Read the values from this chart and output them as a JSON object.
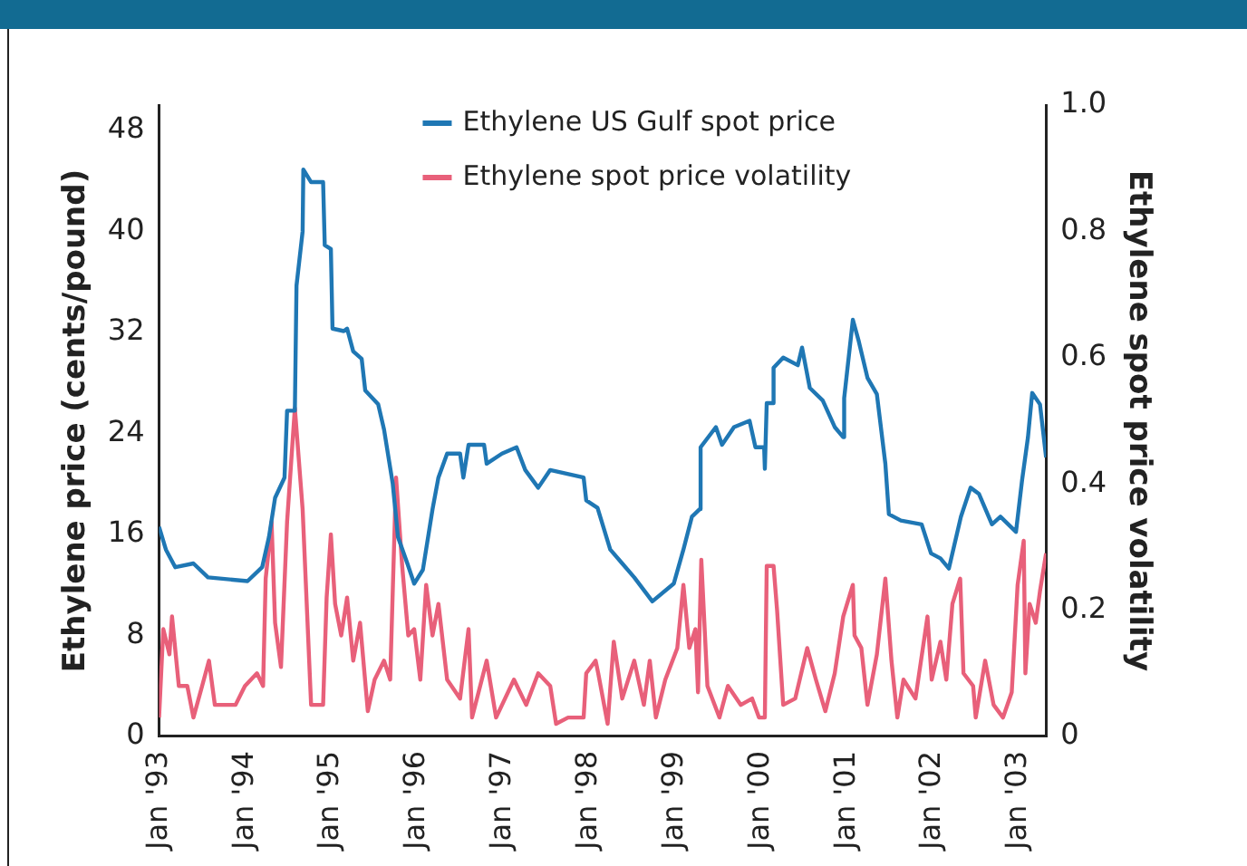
{
  "chart_data": {
    "type": "line",
    "ylabel": "Ethylene price (cents/pound)",
    "y2label": "Ethylene spot price volatility",
    "xlim": [
      "1993-01-01",
      "2003-04-28"
    ],
    "xticks": [
      {
        "value": "1993-01",
        "label": "Jan '93"
      },
      {
        "value": "1994-01",
        "label": "Jan '94"
      },
      {
        "value": "1995-01",
        "label": "Jan '95"
      },
      {
        "value": "1996-01",
        "label": "Jan '96"
      },
      {
        "value": "1997-01",
        "label": "Jan '97"
      },
      {
        "value": "1998-01",
        "label": "Jan '98"
      },
      {
        "value": "1999-01",
        "label": "Jan '99"
      },
      {
        "value": "2000-01",
        "label": "Jan '00"
      },
      {
        "value": "2001-01",
        "label": "Jan '01"
      },
      {
        "value": "2002-01",
        "label": "Jan '02"
      },
      {
        "value": "2003-01",
        "label": "Jan '03"
      }
    ],
    "ylim": [
      0,
      50
    ],
    "yticks": [
      0,
      8,
      16,
      24,
      32,
      40,
      48
    ],
    "y2lim": [
      0,
      1
    ],
    "y2ticks": [
      0,
      0.2,
      0.4,
      0.6,
      0.8,
      {
        "value": 1,
        "label": "1.0"
      }
    ],
    "grid": false,
    "legend": "top",
    "marker": "none",
    "line_style": "solid",
    "series": [
      {
        "name": "Ethylene US Gulf spot price",
        "color": "#1f77b4",
        "x": [
          "1993-01-01",
          "1993-01-30",
          "1993-03-11",
          "1993-05-27",
          "1993-07-28",
          "1994-01-12",
          "1994-03-15",
          "1994-04-13",
          "1994-05-09",
          "1994-06-18",
          "1994-06-29",
          "1994-08-01",
          "1994-08-08",
          "1994-09-03",
          "1994-09-06",
          "1994-10-09",
          "1994-11-29",
          "1994-12-06",
          "1995-01-01",
          "1995-01-08",
          "1995-02-25",
          "1995-03-11",
          "1995-04-06",
          "1995-05-12",
          "1995-05-27",
          "1995-07-21",
          "1995-08-15",
          "1995-09-21",
          "1995-10-13",
          "1995-11-22",
          "1995-12-21",
          "1996-01-27",
          "1996-03-08",
          "1996-04-02",
          "1996-05-09",
          "1996-07-03",
          "1996-07-17",
          "1996-08-08",
          "1996-10-13",
          "1996-10-24",
          "1996-12-28",
          "1997-02-28",
          "1997-04-06",
          "1997-05-31",
          "1997-07-21",
          "1997-12-10",
          "1997-12-21",
          "1998-02-07",
          "1998-04-02",
          "1998-05-23",
          "1998-07-13",
          "1998-09-28",
          "1998-12-28",
          "1999-02-07",
          "1999-03-15",
          "1999-04-17",
          "1999-04-21",
          "1999-06-25",
          "1999-07-21",
          "1999-09-10",
          "1999-11-15",
          "1999-12-10",
          "2000-01-16",
          "2000-01-19",
          "2000-01-27",
          "2000-02-21",
          "2000-02-25",
          "2000-04-06",
          "2000-06-07",
          "2000-06-25",
          "2000-07-28",
          "2000-09-21",
          "2000-11-11",
          "2000-12-17",
          "2000-12-21",
          "2001-01-27",
          "2001-02-21",
          "2001-03-30",
          "2001-05-09",
          "2001-06-14",
          "2001-06-29",
          "2001-08-19",
          "2001-11-15",
          "2001-12-25",
          "2002-02-03",
          "2002-03-11",
          "2002-05-01",
          "2002-06-11",
          "2002-07-17",
          "2002-09-10",
          "2002-10-16",
          "2002-12-21",
          "2003-01-16",
          "2003-02-10",
          "2003-02-28",
          "2003-04-02",
          "2003-04-28"
        ],
        "values": [
          16.6,
          14.8,
          13.4,
          13.7,
          12.6,
          12.3,
          13.4,
          15.8,
          18.9,
          20.5,
          25.8,
          25.8,
          35.7,
          40,
          44.9,
          43.9,
          43.9,
          38.9,
          38.6,
          32.3,
          32.1,
          32.3,
          30.5,
          29.9,
          27.4,
          26.3,
          24.3,
          20.0,
          15.8,
          13.7,
          12.1,
          13.2,
          18.0,
          20.5,
          22.4,
          22.4,
          20.5,
          23.1,
          23.1,
          21.6,
          22.4,
          22.9,
          21.1,
          19.7,
          21.1,
          20.5,
          18.7,
          18.1,
          14.8,
          13.7,
          12.6,
          10.7,
          12.1,
          14.8,
          17.4,
          18.0,
          22.9,
          24.5,
          23.1,
          24.5,
          25.0,
          22.9,
          22.9,
          21.2,
          26.4,
          26.4,
          29.2,
          30.0,
          29.4,
          30.8,
          27.6,
          26.6,
          24.5,
          23.7,
          26.8,
          33.0,
          31.3,
          28.4,
          27.1,
          21.6,
          17.6,
          17.1,
          16.8,
          14.5,
          14.1,
          13.3,
          17.4,
          19.7,
          19.2,
          16.8,
          17.4,
          16.2,
          20.3,
          23.7,
          27.2,
          26.3,
          22.1
        ]
      },
      {
        "name": "Ethylene spot price volatility",
        "color": "#e8607a",
        "axis": "y2",
        "x": [
          "1993-01-01",
          "1993-01-19",
          "1993-02-14",
          "1993-02-25",
          "1993-03-26",
          "1993-05-01",
          "1993-05-27",
          "1993-07-03",
          "1993-08-01",
          "1993-08-26",
          "1993-11-22",
          "1994-01-01",
          "1994-02-21",
          "1994-03-19",
          "1994-03-30",
          "1994-04-24",
          "1994-05-09",
          "1994-06-03",
          "1994-06-29",
          "1994-08-01",
          "1994-09-03",
          "1994-10-09",
          "1994-11-29",
          "1994-12-14",
          "1995-01-01",
          "1995-01-19",
          "1995-02-14",
          "1995-03-11",
          "1995-04-06",
          "1995-05-05",
          "1995-06-07",
          "1995-07-06",
          "1995-08-15",
          "1995-09-10",
          "1995-10-05",
          "1995-10-31",
          "1995-11-26",
          "1995-12-21",
          "1996-01-16",
          "1996-02-10",
          "1996-03-08",
          "1996-04-02",
          "1996-05-09",
          "1996-07-03",
          "1996-08-08",
          "1996-08-23",
          "1996-10-24",
          "1996-12-03",
          "1997-02-17",
          "1997-04-10",
          "1997-05-31",
          "1997-07-21",
          "1997-08-15",
          "1997-10-05",
          "1997-12-10",
          "1997-12-21",
          "1998-01-30",
          "1998-02-10",
          "1998-03-22",
          "1998-04-17",
          "1998-05-23",
          "1998-07-13",
          "1998-08-23",
          "1998-09-17",
          "1998-10-13",
          "1998-11-22",
          "1999-01-12",
          "1999-02-07",
          "1999-03-04",
          "1999-03-30",
          "1999-04-10",
          "1999-04-24",
          "1999-05-20",
          "1999-07-10",
          "1999-08-15",
          "1999-10-09",
          "1999-11-26",
          "1999-12-25",
          "2000-01-19",
          "2000-01-27",
          "2000-02-25",
          "2000-03-11",
          "2000-04-06",
          "2000-05-27",
          "2000-07-17",
          "2000-08-23",
          "2000-10-02",
          "2000-11-11",
          "2000-12-17",
          "2001-01-27",
          "2001-02-03",
          "2001-03-04",
          "2001-03-30",
          "2001-05-09",
          "2001-06-14",
          "2001-07-10",
          "2001-08-04",
          "2001-08-30",
          "2001-10-20",
          "2001-12-10",
          "2001-12-28",
          "2002-02-03",
          "2002-02-28",
          "2002-03-26",
          "2002-04-28",
          "2002-05-12",
          "2002-06-22",
          "2002-07-03",
          "2002-08-12",
          "2002-09-17",
          "2002-10-27",
          "2002-12-03",
          "2002-12-28",
          "2003-01-23",
          "2003-01-30",
          "2003-02-17",
          "2003-03-15",
          "2003-04-02",
          "2003-04-28"
        ],
        "values": [
          0.03,
          0.17,
          0.13,
          0.19,
          0.08,
          0.08,
          0.03,
          0.08,
          0.12,
          0.05,
          0.05,
          0.08,
          0.1,
          0.08,
          0.25,
          0.34,
          0.18,
          0.11,
          0.34,
          0.52,
          0.36,
          0.05,
          0.05,
          0.22,
          0.32,
          0.21,
          0.16,
          0.22,
          0.12,
          0.18,
          0.04,
          0.09,
          0.12,
          0.09,
          0.41,
          0.27,
          0.16,
          0.17,
          0.09,
          0.24,
          0.16,
          0.21,
          0.09,
          0.06,
          0.17,
          0.03,
          0.12,
          0.03,
          0.09,
          0.05,
          0.1,
          0.08,
          0.02,
          0.03,
          0.03,
          0.1,
          0.12,
          0.1,
          0.02,
          0.15,
          0.06,
          0.12,
          0.05,
          0.12,
          0.03,
          0.09,
          0.14,
          0.24,
          0.14,
          0.17,
          0.07,
          0.28,
          0.08,
          0.03,
          0.08,
          0.05,
          0.06,
          0.03,
          0.03,
          0.27,
          0.27,
          0.2,
          0.05,
          0.06,
          0.14,
          0.09,
          0.04,
          0.1,
          0.19,
          0.24,
          0.16,
          0.14,
          0.05,
          0.13,
          0.25,
          0.12,
          0.03,
          0.09,
          0.06,
          0.19,
          0.09,
          0.15,
          0.09,
          0.21,
          0.25,
          0.1,
          0.08,
          0.03,
          0.12,
          0.05,
          0.03,
          0.07,
          0.24,
          0.31,
          0.1,
          0.21,
          0.18,
          0.23,
          0.29
        ]
      }
    ]
  }
}
